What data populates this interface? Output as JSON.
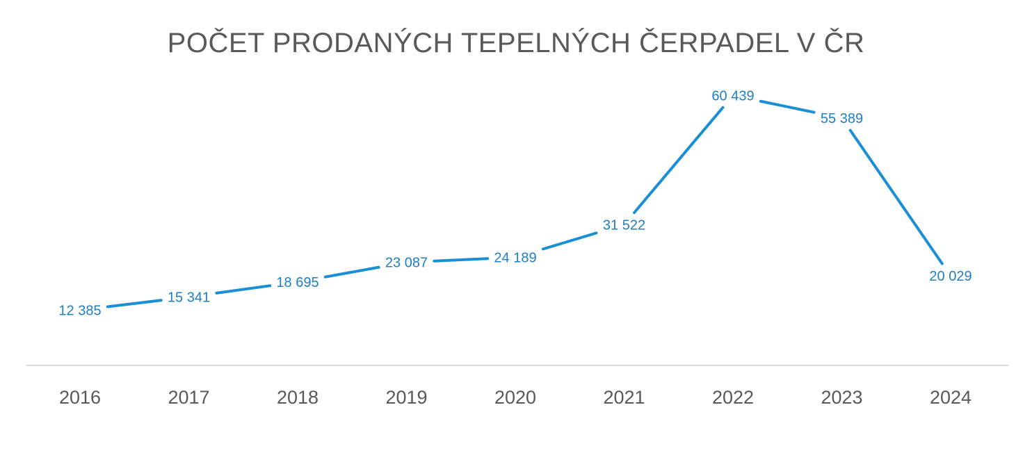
{
  "chart_data": {
    "type": "line",
    "title": "POČET PRODANÝCH TEPELNÝCH ČERPADEL V ČR",
    "categories": [
      "2016",
      "2017",
      "2018",
      "2019",
      "2020",
      "2021",
      "2022",
      "2023",
      "2024"
    ],
    "series": [
      {
        "values": [
          12385,
          15341,
          18695,
          23087,
          24189,
          31522,
          60439,
          55389,
          20029
        ],
        "labels": [
          "12 385",
          "15 341",
          "18 695",
          "23 087",
          "24 189",
          "31 522",
          "60 439",
          "55 389",
          "20 029"
        ],
        "color": "#1a8fd6"
      }
    ],
    "xlabel": "",
    "ylabel": "",
    "ylim": [
      0,
      70000
    ],
    "grid": false,
    "legend": "none",
    "axis_color": "#d9d9d9",
    "tick_color": "#595959",
    "label_color": "#1f7fc4"
  }
}
